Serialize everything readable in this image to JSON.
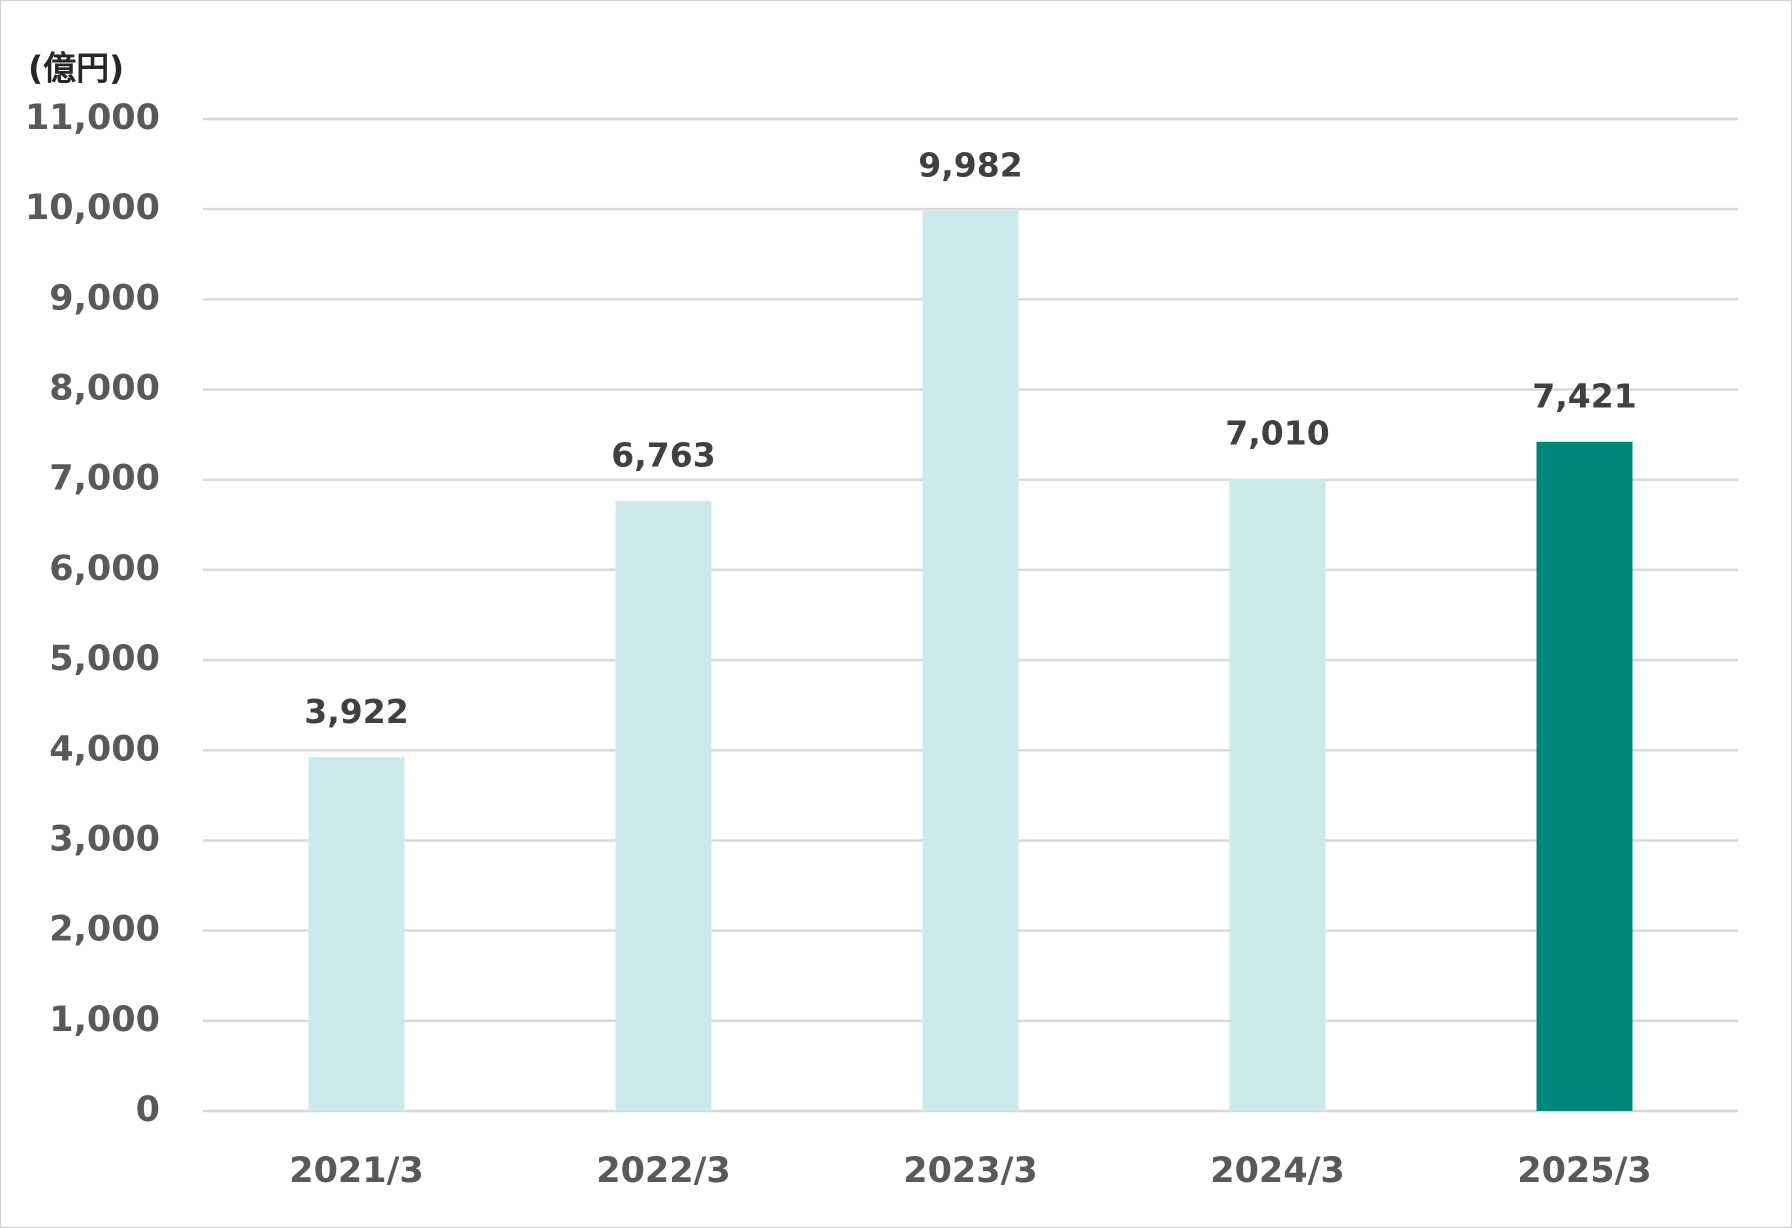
{
  "chart_data": {
    "type": "bar",
    "unit_label": "(億円)",
    "categories": [
      "2021/3",
      "2022/3",
      "2023/3",
      "2024/3",
      "2025/3"
    ],
    "values": [
      3922,
      6763,
      9982,
      7010,
      7421
    ],
    "value_labels": [
      "3,922",
      "6,763",
      "9,982",
      "7,010",
      "7,421"
    ],
    "colors": [
      "#cdeaea",
      "#cdeaea",
      "#cdeaea",
      "#cdeaea",
      "#00857d"
    ],
    "ylim": [
      0,
      11000
    ],
    "yticks": [
      0,
      {
        "value": 1000,
        "label": "1,000"
      },
      {
        "value": 2000,
        "label": "2,000"
      },
      {
        "value": 3000,
        "label": "3,000"
      },
      {
        "value": 4000,
        "label": "4,000"
      },
      {
        "value": 5000,
        "label": "5,000"
      },
      {
        "value": 6000,
        "label": "6,000"
      },
      {
        "value": 7000,
        "label": "7,000"
      },
      {
        "value": 8000,
        "label": "8,000"
      },
      {
        "value": 9000,
        "label": "9,000"
      },
      {
        "value": 10000,
        "label": "10,000"
      },
      {
        "value": 11000,
        "label": "11,000"
      }
    ],
    "grid": true
  }
}
